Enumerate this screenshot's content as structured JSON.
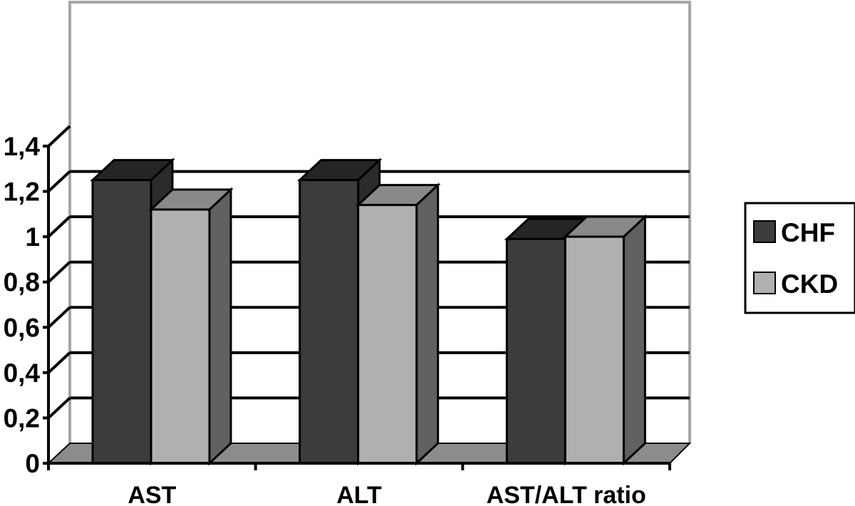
{
  "chart_data": {
    "type": "bar",
    "style": "3d-clustered",
    "categories": [
      "AST",
      "ALT",
      "AST/ALT ratio"
    ],
    "series": [
      {
        "name": "CHF",
        "values": [
          1.25,
          1.25,
          0.99
        ],
        "color": "#3c3c3c"
      },
      {
        "name": "CKD",
        "values": [
          1.12,
          1.14,
          1.0
        ],
        "color": "#b0b0b0"
      }
    ],
    "ylim": [
      0,
      1.4
    ],
    "yticks": [
      "0",
      "0,2",
      "0,4",
      "0,6",
      "0,8",
      "1",
      "1,2",
      "1,4"
    ],
    "grid": true,
    "legend_position": "right",
    "title": "",
    "xlabel": "",
    "ylabel": ""
  }
}
